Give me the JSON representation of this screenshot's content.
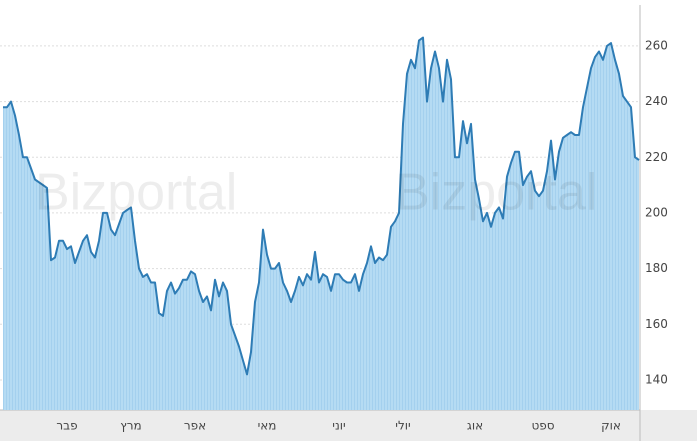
{
  "chart_data": {
    "type": "area",
    "watermark": "Bizportal",
    "color": "#2e7cb5",
    "fill": "#b5dbf3",
    "ylim": [
      129.2,
      274.7
    ],
    "yticks": [
      140,
      160,
      180,
      200,
      220,
      240,
      260
    ],
    "grid": true,
    "categories": [
      null,
      null,
      null,
      null,
      null,
      null,
      null,
      null,
      null,
      null,
      null,
      null,
      null,
      null,
      null,
      null,
      "פבר",
      null,
      null,
      null,
      null,
      null,
      null,
      null,
      null,
      null,
      null,
      null,
      null,
      null,
      null,
      null,
      "מרץ",
      null,
      null,
      null,
      null,
      null,
      null,
      null,
      null,
      null,
      null,
      null,
      null,
      null,
      null,
      null,
      "אפר",
      null,
      null,
      null,
      null,
      null,
      null,
      null,
      null,
      null,
      null,
      null,
      null,
      null,
      null,
      null,
      null,
      null,
      "מאי",
      null,
      null,
      null,
      null,
      null,
      null,
      null,
      null,
      null,
      null,
      null,
      null,
      null,
      null,
      null,
      null,
      null,
      "יוני",
      null,
      null,
      null,
      null,
      null,
      null,
      null,
      null,
      null,
      null,
      null,
      null,
      null,
      null,
      null,
      "יולי",
      null,
      null,
      null,
      null,
      null,
      null,
      null,
      null,
      null,
      null,
      null,
      null,
      null,
      null,
      null,
      null,
      null,
      "אוג",
      null,
      null,
      null,
      null,
      null,
      null,
      null,
      null,
      null,
      null,
      null,
      null,
      null,
      null,
      null,
      null,
      "ספט",
      null,
      null,
      null,
      null,
      null,
      null,
      null,
      null,
      null,
      null,
      null,
      null,
      null,
      null,
      null,
      null,
      "אוק",
      null,
      null,
      null,
      null,
      null,
      null,
      null
    ],
    "values": [
      238,
      238,
      240,
      235,
      228,
      220,
      220,
      216,
      212,
      211,
      210,
      209,
      183,
      184,
      190,
      190,
      187,
      188,
      182,
      186,
      190,
      192,
      186,
      184,
      190,
      200,
      200,
      194,
      192,
      196,
      200,
      201,
      202,
      190,
      180,
      177,
      178,
      175,
      175,
      164,
      163,
      172,
      175,
      171,
      173,
      176,
      176,
      179,
      178,
      172,
      168,
      170,
      165,
      176,
      170,
      175,
      172,
      160,
      156,
      152,
      147,
      142,
      150,
      168,
      175,
      194,
      185,
      180,
      180,
      182,
      175,
      172,
      168,
      172,
      177,
      174,
      178,
      176,
      186,
      175,
      178,
      177,
      172,
      178,
      178,
      176,
      175,
      175,
      178,
      172,
      178,
      182,
      188,
      182,
      184,
      183,
      185,
      195,
      197,
      200,
      232,
      250,
      255,
      252,
      262,
      263,
      240,
      252,
      258,
      252,
      240,
      255,
      248,
      220,
      220,
      233,
      225,
      232,
      212,
      205,
      197,
      200,
      195,
      200,
      202,
      198,
      213,
      218,
      222,
      222,
      210,
      213,
      215,
      208,
      206,
      208,
      215,
      226,
      212,
      222,
      227,
      228,
      229,
      228,
      228,
      238,
      245,
      252,
      256,
      258,
      255,
      260,
      261,
      255,
      250,
      242,
      240,
      238,
      220,
      219
    ]
  }
}
